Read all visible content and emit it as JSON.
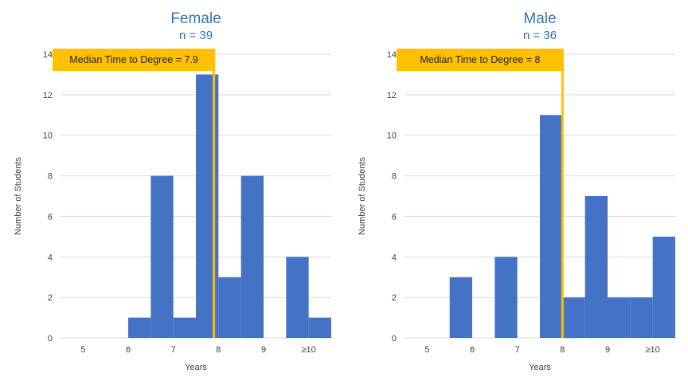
{
  "chart_data": [
    {
      "type": "bar",
      "title": "Female",
      "subtitle": "n = 39",
      "xlabel": "Years",
      "ylabel": "Number  of Students",
      "ylim": [
        0,
        14
      ],
      "yticks": [
        0,
        2,
        4,
        6,
        8,
        10,
        12,
        14
      ],
      "xlim": [
        4.5,
        10.5
      ],
      "xticks": [
        {
          "value": 5,
          "label": "5"
        },
        {
          "value": 6,
          "label": "6"
        },
        {
          "value": 7,
          "label": "7"
        },
        {
          "value": 8,
          "label": "8"
        },
        {
          "value": 9,
          "label": "9"
        },
        {
          "value": 10,
          "label": "≥10"
        }
      ],
      "bin_width": 0.5,
      "bins": [
        {
          "start": 5.5,
          "count": 0
        },
        {
          "start": 6.0,
          "count": 1
        },
        {
          "start": 6.5,
          "count": 8
        },
        {
          "start": 7.0,
          "count": 1
        },
        {
          "start": 7.5,
          "count": 13
        },
        {
          "start": 8.0,
          "count": 3
        },
        {
          "start": 8.5,
          "count": 8
        },
        {
          "start": 9.0,
          "count": 0
        },
        {
          "start": 9.5,
          "count": 4
        },
        {
          "start": 10.0,
          "count": 1
        }
      ],
      "median": 7.9,
      "median_label": "Median Time to Degree = 7.9"
    },
    {
      "type": "bar",
      "title": "Male",
      "subtitle": "n = 36",
      "xlabel": "Years",
      "ylabel": "Number  of Students",
      "ylim": [
        0,
        14
      ],
      "yticks": [
        0,
        2,
        4,
        6,
        8,
        10,
        12,
        14
      ],
      "xlim": [
        4.5,
        10.5
      ],
      "xticks": [
        {
          "value": 5,
          "label": "5"
        },
        {
          "value": 6,
          "label": "6"
        },
        {
          "value": 7,
          "label": "7"
        },
        {
          "value": 8,
          "label": "8"
        },
        {
          "value": 9,
          "label": "9"
        },
        {
          "value": 10,
          "label": "≥10"
        }
      ],
      "bin_width": 0.5,
      "bins": [
        {
          "start": 5.0,
          "count": 0
        },
        {
          "start": 5.5,
          "count": 3
        },
        {
          "start": 6.0,
          "count": 0
        },
        {
          "start": 6.5,
          "count": 4
        },
        {
          "start": 7.0,
          "count": 0
        },
        {
          "start": 7.5,
          "count": 11
        },
        {
          "start": 8.0,
          "count": 2
        },
        {
          "start": 8.5,
          "count": 7
        },
        {
          "start": 9.0,
          "count": 2
        },
        {
          "start": 9.5,
          "count": 2
        },
        {
          "start": 10.0,
          "count": 5
        }
      ],
      "median": 8,
      "median_label": "Median Time to Degree = 8"
    }
  ]
}
